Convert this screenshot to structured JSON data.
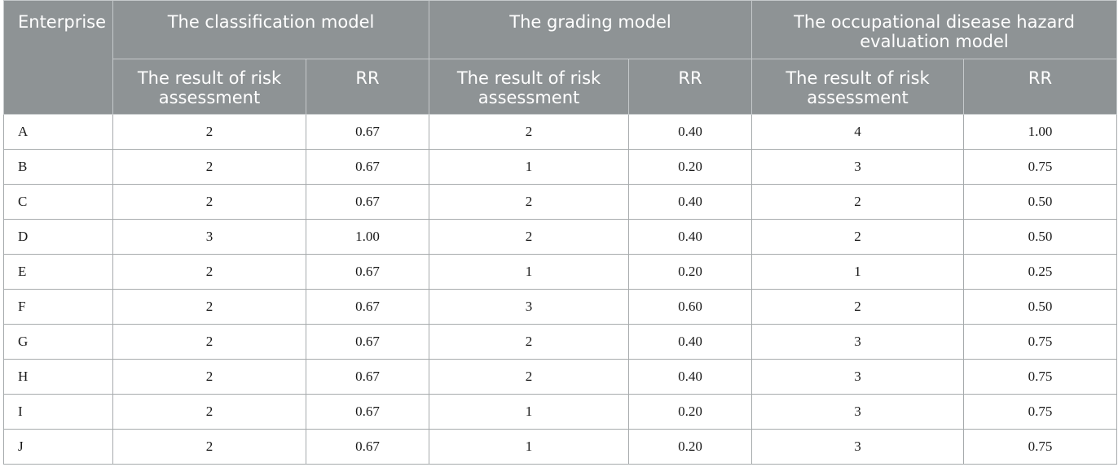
{
  "table": {
    "headers": {
      "enterprise": "Enterprise",
      "groups": [
        "The classification model",
        "The grading model",
        "The occupational disease hazard evaluation model"
      ],
      "sub": [
        "The result of risk assessment",
        "RR"
      ]
    },
    "rows": [
      {
        "enterprise": "A",
        "cls_result": "2",
        "cls_rr": "0.67",
        "grd_result": "2",
        "grd_rr": "0.40",
        "occ_result": "4",
        "occ_rr": "1.00"
      },
      {
        "enterprise": "B",
        "cls_result": "2",
        "cls_rr": "0.67",
        "grd_result": "1",
        "grd_rr": "0.20",
        "occ_result": "3",
        "occ_rr": "0.75"
      },
      {
        "enterprise": "C",
        "cls_result": "2",
        "cls_rr": "0.67",
        "grd_result": "2",
        "grd_rr": "0.40",
        "occ_result": "2",
        "occ_rr": "0.50"
      },
      {
        "enterprise": "D",
        "cls_result": "3",
        "cls_rr": "1.00",
        "grd_result": "2",
        "grd_rr": "0.40",
        "occ_result": "2",
        "occ_rr": "0.50"
      },
      {
        "enterprise": "E",
        "cls_result": "2",
        "cls_rr": "0.67",
        "grd_result": "1",
        "grd_rr": "0.20",
        "occ_result": "1",
        "occ_rr": "0.25"
      },
      {
        "enterprise": "F",
        "cls_result": "2",
        "cls_rr": "0.67",
        "grd_result": "3",
        "grd_rr": "0.60",
        "occ_result": "2",
        "occ_rr": "0.50"
      },
      {
        "enterprise": "G",
        "cls_result": "2",
        "cls_rr": "0.67",
        "grd_result": "2",
        "grd_rr": "0.40",
        "occ_result": "3",
        "occ_rr": "0.75"
      },
      {
        "enterprise": "H",
        "cls_result": "2",
        "cls_rr": "0.67",
        "grd_result": "2",
        "grd_rr": "0.40",
        "occ_result": "3",
        "occ_rr": "0.75"
      },
      {
        "enterprise": "I",
        "cls_result": "2",
        "cls_rr": "0.67",
        "grd_result": "1",
        "grd_rr": "0.20",
        "occ_result": "3",
        "occ_rr": "0.75"
      },
      {
        "enterprise": "J",
        "cls_result": "2",
        "cls_rr": "0.67",
        "grd_result": "1",
        "grd_rr": "0.20",
        "occ_result": "3",
        "occ_rr": "0.75"
      }
    ]
  },
  "colors": {
    "header_bg": "#8e9395",
    "header_text": "#ffffff",
    "border": "#a6aaac"
  }
}
